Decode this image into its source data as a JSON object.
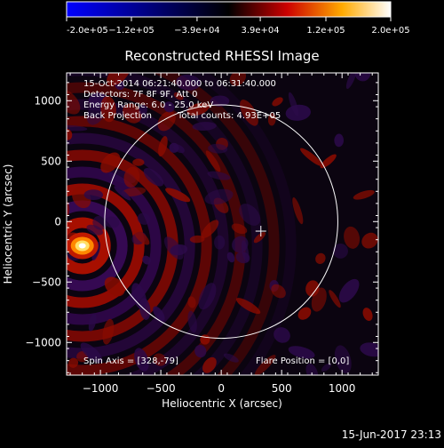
{
  "chart_data": {
    "type": "heatmap",
    "title": "Reconstructed RHESSI Image",
    "xlabel": "Heliocentric X (arcsec)",
    "ylabel": "Heliocentric Y (arcsec)",
    "xlim": [
      -1280,
      1300
    ],
    "ylim": [
      -1270,
      1230
    ],
    "xticks": [
      -1000,
      -500,
      0,
      500,
      1000
    ],
    "yticks": [
      -1000,
      -500,
      0,
      500,
      1000
    ],
    "colorbar": {
      "range": [
        -200000,
        200000
      ],
      "tick_labels": [
        "-2.0e+05",
        "−1.2e+05",
        "−3.9e+04",
        "3.9e+04",
        "1.2e+05",
        "2.0e+05"
      ],
      "tick_values": [
        -200000,
        -120000,
        -39000,
        39000,
        120000,
        200000
      ],
      "colors": [
        "#0000ff",
        "#000000",
        "#cc0000",
        "#ffaa00",
        "#ffffff"
      ]
    },
    "annotations": [
      "15-Oct-2014 06:21:40.000 to 06:31:40.000",
      "Detectors: 7F 8F 9F, Att 0",
      "Energy Range: 6.0 - 25.0 keV",
      "Back Projection",
      "Total counts: 4.93E+05"
    ],
    "footer_left": "Spin Axis = [328,-79]",
    "footer_right": "Flare Position = [0,0]",
    "solar_limb": {
      "center": [
        0,
        0
      ],
      "radius_arcsec": 965
    },
    "marker": {
      "symbol": "+",
      "x": 328,
      "y": -79
    },
    "source": {
      "x": -1150,
      "y": -200,
      "peak": 200000
    }
  },
  "timestamp": "15-Jun-2017 23:13"
}
